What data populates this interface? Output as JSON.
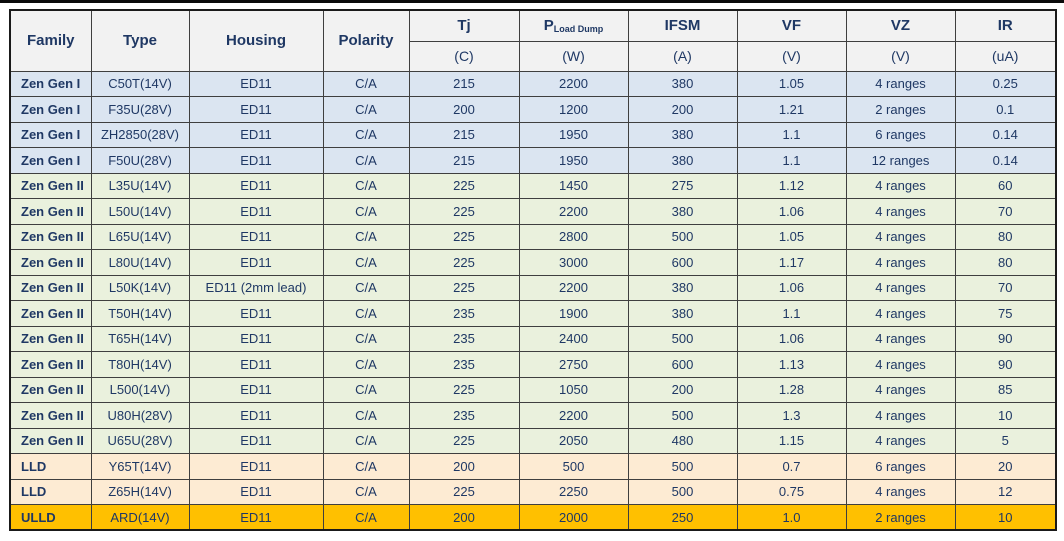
{
  "colors": {
    "top_line": "#0A0A0A",
    "header_bg": "#F2F2F2",
    "gen1_row_bg": "#DBE5F1",
    "gen2_row_bg": "#EAF1DD",
    "lld_row_bg": "#FDEBD3",
    "ulld_row_bg": "#FFC000",
    "text": "#1F3864",
    "grid": "#3F3F3F"
  },
  "table": {
    "header": {
      "family": "Family",
      "type": "Type",
      "housing": "Housing",
      "polarity": "Polarity",
      "tj": "Tj",
      "tj_unit": "(C)",
      "p_main": "P",
      "p_sub": "Load Dump",
      "p_unit": "(W)",
      "ifsm": "IFSM",
      "ifsm_unit": "(A)",
      "vf": "VF",
      "vf_unit": "(V)",
      "vz": "VZ",
      "vz_unit": "(V)",
      "ir": "IR",
      "ir_unit": "(uA)"
    },
    "column_keys": [
      "family",
      "type",
      "housing",
      "polarity",
      "tj",
      "p",
      "ifsm",
      "vf",
      "vz",
      "ir"
    ],
    "rows": [
      {
        "group": "gen1",
        "family": "Zen Gen I",
        "type": "C50T(14V)",
        "housing": "ED11",
        "polarity": "C/A",
        "tj": "215",
        "p": "2200",
        "ifsm": "380",
        "vf": "1.05",
        "vz": "4 ranges",
        "ir": "0.25"
      },
      {
        "group": "gen1",
        "family": "Zen Gen I",
        "type": "F35U(28V)",
        "housing": "ED11",
        "polarity": "C/A",
        "tj": "200",
        "p": "1200",
        "ifsm": "200",
        "vf": "1.21",
        "vz": "2 ranges",
        "ir": "0.1"
      },
      {
        "group": "gen1",
        "family": "Zen Gen I",
        "type": "ZH2850(28V)",
        "housing": "ED11",
        "polarity": "C/A",
        "tj": "215",
        "p": "1950",
        "ifsm": "380",
        "vf": "1.1",
        "vz": "6 ranges",
        "ir": "0.14"
      },
      {
        "group": "gen1",
        "family": "Zen Gen I",
        "type": "F50U(28V)",
        "housing": "ED11",
        "polarity": "C/A",
        "tj": "215",
        "p": "1950",
        "ifsm": "380",
        "vf": "1.1",
        "vz": "12 ranges",
        "ir": "0.14"
      },
      {
        "group": "gen2",
        "family": "Zen Gen II",
        "type": "L35U(14V)",
        "housing": "ED11",
        "polarity": "C/A",
        "tj": "225",
        "p": "1450",
        "ifsm": "275",
        "vf": "1.12",
        "vz": "4 ranges",
        "ir": "60"
      },
      {
        "group": "gen2",
        "family": "Zen Gen II",
        "type": "L50U(14V)",
        "housing": "ED11",
        "polarity": "C/A",
        "tj": "225",
        "p": "2200",
        "ifsm": "380",
        "vf": "1.06",
        "vz": "4 ranges",
        "ir": "70"
      },
      {
        "group": "gen2",
        "family": "Zen Gen II",
        "type": "L65U(14V)",
        "housing": "ED11",
        "polarity": "C/A",
        "tj": "225",
        "p": "2800",
        "ifsm": "500",
        "vf": "1.05",
        "vz": "4 ranges",
        "ir": "80"
      },
      {
        "group": "gen2",
        "family": "Zen Gen II",
        "type": "L80U(14V)",
        "housing": "ED11",
        "polarity": "C/A",
        "tj": "225",
        "p": "3000",
        "ifsm": "600",
        "vf": "1.17",
        "vz": "4 ranges",
        "ir": "80"
      },
      {
        "group": "gen2",
        "family": "Zen Gen II",
        "type": "L50K(14V)",
        "housing": "ED11 (2mm lead)",
        "polarity": "C/A",
        "tj": "225",
        "p": "2200",
        "ifsm": "380",
        "vf": "1.06",
        "vz": "4 ranges",
        "ir": "70"
      },
      {
        "group": "gen2",
        "family": "Zen Gen II",
        "type": "T50H(14V)",
        "housing": "ED11",
        "polarity": "C/A",
        "tj": "235",
        "p": "1900",
        "ifsm": "380",
        "vf": "1.1",
        "vz": "4 ranges",
        "ir": "75"
      },
      {
        "group": "gen2",
        "family": "Zen Gen II",
        "type": "T65H(14V)",
        "housing": "ED11",
        "polarity": "C/A",
        "tj": "235",
        "p": "2400",
        "ifsm": "500",
        "vf": "1.06",
        "vz": "4 ranges",
        "ir": "90"
      },
      {
        "group": "gen2",
        "family": "Zen Gen II",
        "type": "T80H(14V)",
        "housing": "ED11",
        "polarity": "C/A",
        "tj": "235",
        "p": "2750",
        "ifsm": "600",
        "vf": "1.13",
        "vz": "4 ranges",
        "ir": "90"
      },
      {
        "group": "gen2",
        "family": "Zen Gen II",
        "type": "L500(14V)",
        "housing": "ED11",
        "polarity": "C/A",
        "tj": "225",
        "p": "1050",
        "ifsm": "200",
        "vf": "1.28",
        "vz": "4 ranges",
        "ir": "85"
      },
      {
        "group": "gen2",
        "family": "Zen Gen II",
        "type": "U80H(28V)",
        "housing": "ED11",
        "polarity": "C/A",
        "tj": "235",
        "p": "2200",
        "ifsm": "500",
        "vf": "1.3",
        "vz": "4 ranges",
        "ir": "10"
      },
      {
        "group": "gen2",
        "family": "Zen Gen II",
        "type": "U65U(28V)",
        "housing": "ED11",
        "polarity": "C/A",
        "tj": "225",
        "p": "2050",
        "ifsm": "480",
        "vf": "1.15",
        "vz": "4 ranges",
        "ir": "5"
      },
      {
        "group": "lld",
        "family": "LLD",
        "type": "Y65T(14V)",
        "housing": "ED11",
        "polarity": "C/A",
        "tj": "200",
        "p": "500",
        "ifsm": "500",
        "vf": "0.7",
        "vz": "6 ranges",
        "ir": "20"
      },
      {
        "group": "lld",
        "family": "LLD",
        "type": "Z65H(14V)",
        "housing": "ED11",
        "polarity": "C/A",
        "tj": "225",
        "p": "2250",
        "ifsm": "500",
        "vf": "0.75",
        "vz": "4 ranges",
        "ir": "12"
      },
      {
        "group": "ulld",
        "family": "ULLD",
        "type": "ARD(14V)",
        "housing": "ED11",
        "polarity": "C/A",
        "tj": "200",
        "p": "2000",
        "ifsm": "250",
        "vf": "1.0",
        "vz": "2 ranges",
        "ir": "10"
      }
    ]
  }
}
